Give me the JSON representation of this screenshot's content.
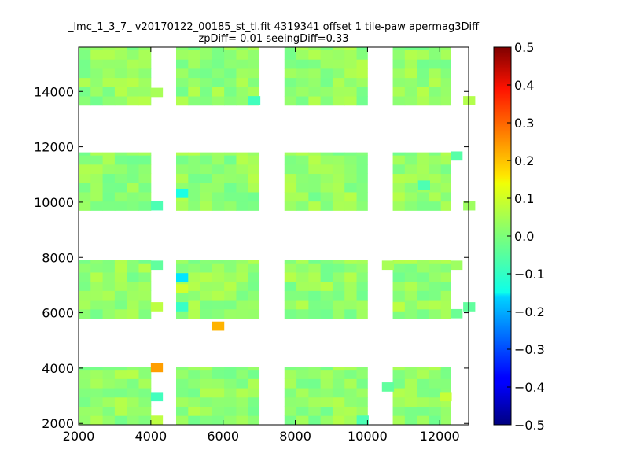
{
  "chart_data": {
    "type": "heatmap",
    "title_line1": "_lmc_1_3_7_ v20170122_00185_st_tl.fit 4319341 offset 1 tile-paw apermag3Diff",
    "title_line2": "zpDiff= 0.01 seeingDiff=0.33",
    "xlim": [
      2000,
      12800
    ],
    "ylim": [
      1950,
      15600
    ],
    "xticks": [
      2000,
      4000,
      6000,
      8000,
      10000,
      12000
    ],
    "yticks": [
      2000,
      4000,
      6000,
      8000,
      10000,
      12000,
      14000
    ],
    "colorbar": {
      "colormap": "jet",
      "vmin": -0.5,
      "vmax": 0.5,
      "ticks": [
        "0.5",
        "0.4",
        "0.3",
        "0.2",
        "0.1",
        "0.0",
        "−0.1",
        "−0.2",
        "−0.3",
        "−0.4",
        "−0.5"
      ]
    },
    "cell_size": 333,
    "detector_columns_x": [
      [
        2000,
        4000
      ],
      [
        4700,
        7000
      ],
      [
        7700,
        10000
      ],
      [
        10700,
        12300
      ]
    ],
    "detector_rows_y": [
      [
        1950,
        4050
      ],
      [
        5800,
        7900
      ],
      [
        9700,
        11800
      ],
      [
        13500,
        15600
      ]
    ],
    "background_value": 0.02,
    "outlier_cells": [
      {
        "x": 4000,
        "y": 3850,
        "value": 0.22
      },
      {
        "x": 5700,
        "y": 5350,
        "value": 0.2
      },
      {
        "x": 4700,
        "y": 7100,
        "value": -0.15
      },
      {
        "x": 4700,
        "y": 10150,
        "value": -0.1
      },
      {
        "x": 4000,
        "y": 2800,
        "value": -0.06
      },
      {
        "x": 4700,
        "y": 6050,
        "value": -0.07
      },
      {
        "x": 4700,
        "y": 6700,
        "value": 0.08
      },
      {
        "x": 4000,
        "y": 9700,
        "value": -0.05
      },
      {
        "x": 6700,
        "y": 13500,
        "value": -0.06
      },
      {
        "x": 11400,
        "y": 10450,
        "value": -0.05
      },
      {
        "x": 12300,
        "y": 11500,
        "value": -0.04
      },
      {
        "x": 12650,
        "y": 13500,
        "value": 0.05
      },
      {
        "x": 12650,
        "y": 9700,
        "value": 0.03
      },
      {
        "x": 10700,
        "y": 6050,
        "value": 0.06
      },
      {
        "x": 10400,
        "y": 7550,
        "value": 0.04
      },
      {
        "x": 12300,
        "y": 7550,
        "value": 0.03
      },
      {
        "x": 10400,
        "y": 3150,
        "value": -0.03
      },
      {
        "x": 12000,
        "y": 2800,
        "value": 0.07
      },
      {
        "x": 9700,
        "y": 1950,
        "value": -0.05
      },
      {
        "x": 4000,
        "y": 1950,
        "value": 0.06
      },
      {
        "x": 4000,
        "y": 13800,
        "value": 0.04
      },
      {
        "x": 4000,
        "y": 6050,
        "value": 0.06
      },
      {
        "x": 4000,
        "y": 7550,
        "value": -0.03
      },
      {
        "x": 12300,
        "y": 5800,
        "value": -0.02
      },
      {
        "x": 12650,
        "y": 6050,
        "value": -0.03
      }
    ]
  }
}
